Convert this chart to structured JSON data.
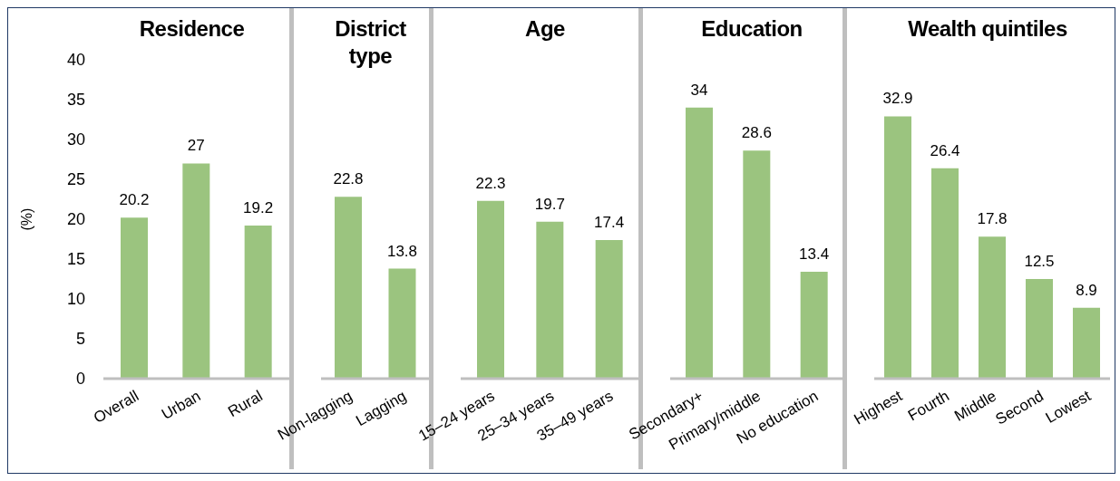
{
  "chart_data": [
    {
      "type": "bar",
      "title": "Residence",
      "ylabel": "(%)",
      "categories": [
        "Overall",
        "Urban",
        "Rural"
      ],
      "values": [
        20.2,
        27,
        19.2
      ],
      "color": "#9bc47f",
      "ylim": [
        0,
        40
      ],
      "yticks": [
        0,
        5,
        10,
        15,
        20,
        25,
        30,
        35,
        40
      ],
      "data_labels": true
    },
    {
      "type": "bar",
      "title": "District type",
      "categories": [
        "Non-lagging",
        "Lagging"
      ],
      "values": [
        22.8,
        13.8
      ],
      "color": "#9bc47f",
      "ylim": [
        0,
        40
      ],
      "yticks": [
        0,
        5,
        10,
        15,
        20,
        25,
        30,
        35,
        40
      ],
      "data_labels": true,
      "tick_labels": "x"
    },
    {
      "type": "bar",
      "title": "Age",
      "categories": [
        "15–24 years",
        "25–34 years",
        "35–49 years"
      ],
      "values": [
        22.3,
        19.7,
        17.4
      ],
      "color": "#9bc47f",
      "ylim": [
        0,
        40
      ],
      "yticks": [
        0,
        5,
        10,
        15,
        20,
        25,
        30,
        35,
        40
      ],
      "data_labels": true,
      "tick_labels": "x"
    },
    {
      "type": "bar",
      "title": "Education",
      "categories": [
        "Secondary+",
        "Primary/middle",
        "No education"
      ],
      "values": [
        34,
        28.6,
        13.4
      ],
      "color": "#9bc47f",
      "ylim": [
        0,
        40
      ],
      "yticks": [
        0,
        5,
        10,
        15,
        20,
        25,
        30,
        35,
        40
      ],
      "data_labels": true,
      "tick_labels": "x"
    },
    {
      "type": "bar",
      "title": "Wealth quintiles",
      "categories": [
        "Highest",
        "Fourth",
        "Middle",
        "Second",
        "Lowest"
      ],
      "values": [
        32.9,
        26.4,
        17.8,
        12.5,
        8.9
      ],
      "color": "#9bc47f",
      "ylim": [
        0,
        40
      ],
      "yticks": [
        0,
        5,
        10,
        15,
        20,
        25,
        30,
        35,
        40
      ],
      "data_labels": true,
      "tick_labels": "x"
    }
  ]
}
